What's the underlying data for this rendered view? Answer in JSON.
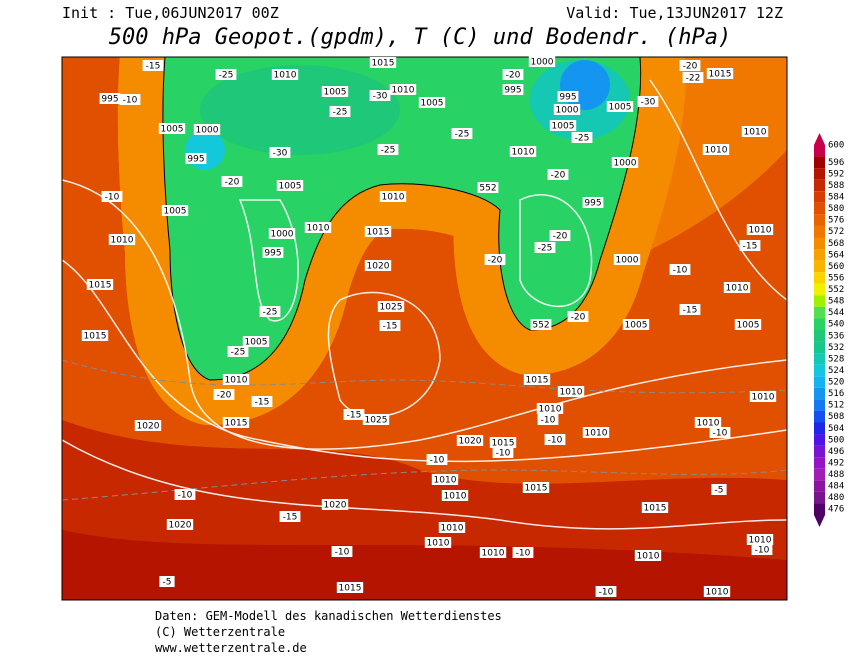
{
  "header": {
    "init": "Init : Tue,06JUN2017 00Z",
    "valid": "Valid: Tue,13JUN2017 12Z",
    "title": "500 hPa Geopot.(gpdm), T (C) und Bodendr. (hPa)"
  },
  "legend": {
    "levels": [
      600,
      596,
      592,
      588,
      584,
      580,
      576,
      572,
      568,
      564,
      560,
      556,
      552,
      548,
      544,
      540,
      536,
      532,
      528,
      524,
      520,
      516,
      512,
      508,
      504,
      500,
      496,
      492,
      488,
      484,
      480,
      476
    ],
    "colors": [
      "#c8004b",
      "#a00000",
      "#b41400",
      "#c82800",
      "#d83c00",
      "#e05000",
      "#e86400",
      "#f07800",
      "#f58c00",
      "#f8a000",
      "#fab400",
      "#fcd200",
      "#f0f000",
      "#a0f000",
      "#50e050",
      "#28d264",
      "#1ec878",
      "#14c88c",
      "#14c8b4",
      "#14c8dc",
      "#14b4f0",
      "#1496f0",
      "#1478f0",
      "#1450f0",
      "#1e28e6",
      "#5014e6",
      "#7814d2",
      "#9614c8",
      "#a01eb4",
      "#8c14a0",
      "#78148c",
      "#500064"
    ]
  },
  "map": {
    "labels": [
      "1010",
      "1015",
      "1005",
      "1010",
      "1005",
      "995",
      "1000",
      "995",
      "1000",
      "1005",
      "1005",
      "1015",
      "1010",
      "1010",
      "1000",
      "995",
      "1010",
      "1010",
      "1005",
      "1010",
      "1000",
      "995",
      "1015",
      "1020",
      "1025",
      "1005",
      "1010",
      "1015",
      "1025",
      "1020",
      "1020",
      "1020",
      "1015",
      "1010",
      "1010",
      "1010",
      "1010",
      "1010",
      "1015",
      "1020",
      "1015",
      "1010",
      "1010",
      "1010",
      "1015",
      "1015",
      "1010",
      "1010",
      "1010",
      "1000",
      "1005",
      "1010",
      "1005",
      "1010",
      "1010",
      "1010",
      "1015",
      "1015",
      "1010",
      "1005",
      "1005",
      "1000",
      "995",
      "995",
      "552",
      "552",
      "-20",
      "-15",
      "-25",
      "-30",
      "-20",
      "-25",
      "-25",
      "-20",
      "-15",
      "-15",
      "-15",
      "-10",
      "-10",
      "-10",
      "-10",
      "-10",
      "-5",
      "-10",
      "-15",
      "-10",
      "-10",
      "-5",
      "-10",
      "-10",
      "-10",
      "-15",
      "-15",
      "-10",
      "-10",
      "-20",
      "-22",
      "-30",
      "-25",
      "-20",
      "-20",
      "-25",
      "-20",
      "-20",
      "-25",
      "-25",
      "-25",
      "-30"
    ]
  },
  "footer": {
    "lines": [
      "Daten: GEM-Modell des kanadischen Wetterdienstes",
      "(C) Wetterzentrale",
      "www.wetterzentrale.de"
    ]
  }
}
